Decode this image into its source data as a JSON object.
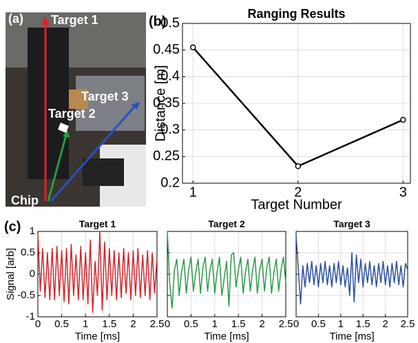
{
  "photo": {
    "panel": "(a)",
    "labels": [
      "Target 1",
      "Target 2",
      "Target 3",
      "Chip"
    ]
  },
  "chart_data": [
    {
      "type": "line",
      "panel": "(b)",
      "title": "Ranging Results",
      "x_label": "Target Number",
      "y_label": "Distance [m]",
      "x": [
        1,
        2,
        3
      ],
      "values": [
        0.455,
        0.232,
        0.319
      ],
      "color": "#000000",
      "marker": "o",
      "xlim": [
        0.9,
        3.07
      ],
      "xticks": [
        1,
        2,
        3
      ],
      "ylim": [
        0.2,
        0.5
      ],
      "yticks": [
        0.2,
        0.25,
        0.3,
        0.35,
        0.4,
        0.45,
        0.5
      ],
      "grid": true,
      "ytick_labels": true
    },
    {
      "type": "line",
      "panel": "(c)",
      "title": "Target 1",
      "x_label": "Time [ms]",
      "y_label": "Signal [arb]",
      "color": "#d0252b",
      "x": [
        0,
        0.05,
        0.1,
        0.15,
        0.2,
        0.25,
        0.3,
        0.35,
        0.4,
        0.45,
        0.5,
        0.55,
        0.6,
        0.65,
        0.7,
        0.75,
        0.8,
        0.85,
        0.9,
        0.95,
        1,
        1.05,
        1.1,
        1.15,
        1.2,
        1.25,
        1.3,
        1.35,
        1.4,
        1.45,
        1.5,
        1.55,
        1.6,
        1.65,
        1.7,
        1.75,
        1.8,
        1.85,
        1.9,
        1.95,
        2,
        2.05,
        2.1,
        2.15,
        2.2,
        2.25,
        2.3,
        2.35,
        2.4,
        2.45,
        2.5
      ],
      "values": [
        0.95,
        -0.4,
        0.6,
        -0.55,
        0.5,
        -0.6,
        0.6,
        -0.6,
        0.65,
        -0.5,
        0.55,
        -0.65,
        0.6,
        -0.7,
        0.7,
        -0.5,
        0.45,
        -0.6,
        0.65,
        -0.6,
        0.5,
        -0.7,
        0.8,
        -0.9,
        0.3,
        -0.5,
        1.0,
        -0.85,
        0.75,
        -0.6,
        0.6,
        -0.5,
        0.55,
        -0.6,
        0.5,
        -0.55,
        0.6,
        -0.45,
        0.5,
        -0.6,
        0.55,
        -0.5,
        0.6,
        -0.55,
        0.45,
        -0.5,
        0.55,
        -0.6,
        0.5,
        -0.45,
        0.4
      ],
      "xlim": [
        0,
        2.5
      ],
      "xticks": [
        0,
        0.5,
        1,
        1.5,
        2,
        2.5
      ],
      "ylim": [
        -1,
        1
      ],
      "yticks": [
        -1,
        -0.5,
        0,
        0.5,
        1
      ],
      "grid": true,
      "ytick_labels": true
    },
    {
      "type": "line",
      "title": "Target 2",
      "x_label": "Time [ms]",
      "color": "#2a9a46",
      "x": [
        0,
        0.05,
        0.1,
        0.15,
        0.2,
        0.25,
        0.3,
        0.35,
        0.4,
        0.45,
        0.5,
        0.55,
        0.6,
        0.65,
        0.7,
        0.75,
        0.8,
        0.85,
        0.9,
        0.95,
        1,
        1.05,
        1.1,
        1.15,
        1.2,
        1.25,
        1.3,
        1.35,
        1.4,
        1.45,
        1.5,
        1.55,
        1.6,
        1.65,
        1.7,
        1.75,
        1.8,
        1.85,
        1.9,
        1.95,
        2,
        2.05,
        2.1,
        2.15,
        2.2,
        2.25,
        2.3,
        2.35,
        2.4,
        2.45,
        2.5
      ],
      "values": [
        1.0,
        -0.2,
        -0.8,
        0.1,
        0.35,
        -0.5,
        0.05,
        0.35,
        -0.45,
        0.1,
        0.4,
        -0.4,
        0.05,
        0.35,
        -0.45,
        0.15,
        0.4,
        -0.4,
        0.1,
        0.35,
        -0.45,
        0.05,
        0.4,
        -0.5,
        -0.1,
        0.3,
        -0.75,
        0.45,
        0.5,
        -0.3,
        0.1,
        0.4,
        -0.45,
        0.05,
        0.35,
        -0.4,
        0.1,
        0.4,
        -0.45,
        0.1,
        0.35,
        -0.4,
        0.15,
        0.4,
        -0.45,
        0.05,
        0.35,
        -0.4,
        0.1,
        0.4,
        -0.2
      ],
      "xlim": [
        0,
        2.5
      ],
      "xticks": [
        0,
        0.5,
        1,
        1.5,
        2,
        2.5
      ],
      "ylim": [
        -1,
        1
      ],
      "yticks": [
        -1,
        -0.5,
        0,
        0.5,
        1
      ],
      "grid": true,
      "ytick_labels": false
    },
    {
      "type": "line",
      "title": "Target 3",
      "x_label": "Time [ms]",
      "color": "#2b4fa0",
      "x": [
        0,
        0.05,
        0.1,
        0.15,
        0.2,
        0.25,
        0.3,
        0.35,
        0.4,
        0.45,
        0.5,
        0.55,
        0.6,
        0.65,
        0.7,
        0.75,
        0.8,
        0.85,
        0.9,
        0.95,
        1,
        1.05,
        1.1,
        1.15,
        1.2,
        1.25,
        1.3,
        1.35,
        1.4,
        1.45,
        1.5,
        1.55,
        1.6,
        1.65,
        1.7,
        1.75,
        1.8,
        1.85,
        1.9,
        1.95,
        2,
        2.05,
        2.1,
        2.15,
        2.2,
        2.25,
        2.3,
        2.35,
        2.4,
        2.45,
        2.5
      ],
      "values": [
        0.9,
        0.1,
        -0.7,
        0.2,
        -0.3,
        0.25,
        -0.2,
        0.3,
        -0.25,
        0.2,
        -0.3,
        0.25,
        -0.2,
        0.3,
        -0.25,
        0.2,
        -0.3,
        0.25,
        -0.2,
        0.3,
        -0.25,
        0.2,
        -0.3,
        0.15,
        -0.5,
        0.5,
        -0.65,
        0.45,
        -0.2,
        0.35,
        -0.3,
        0.25,
        -0.2,
        0.3,
        -0.25,
        0.2,
        -0.3,
        0.25,
        -0.2,
        0.3,
        -0.25,
        0.2,
        -0.3,
        0.25,
        -0.2,
        0.3,
        -0.25,
        0.2,
        -0.3,
        0.25,
        0.1
      ],
      "xlim": [
        0,
        2.5
      ],
      "xticks": [
        0,
        0.5,
        1,
        1.5,
        2,
        2.5
      ],
      "ylim": [
        -1,
        1
      ],
      "yticks": [
        -1,
        -0.5,
        0,
        0.5,
        1
      ],
      "grid": true,
      "ytick_labels": false
    }
  ]
}
